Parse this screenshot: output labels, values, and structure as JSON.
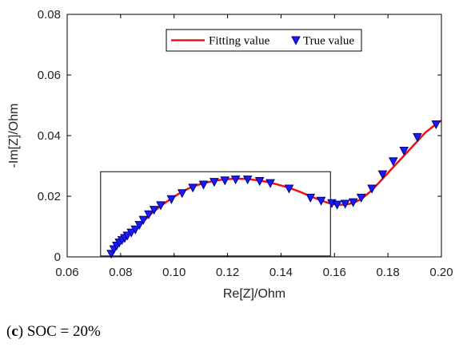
{
  "caption": {
    "open": "(",
    "letter": "c",
    "rest": ") SOC = 20%"
  },
  "chart_data": {
    "type": "line",
    "title": "",
    "xlabel": "Re[Z]/Ohm",
    "ylabel": "-Im[Z]/Ohm",
    "xlim": [
      0.06,
      0.2
    ],
    "ylim": [
      0,
      0.08
    ],
    "xticks": [
      "0.06",
      "0.08",
      "0.10",
      "0.12",
      "0.14",
      "0.16",
      "0.18",
      "0.20"
    ],
    "yticks": [
      "0",
      "0.02",
      "0.04",
      "0.06",
      "0.08"
    ],
    "grid": false,
    "legend_position": "top-right",
    "colors": {
      "fit": "#ee1111",
      "true": "#1a1aff",
      "marker_edge": "#000080"
    },
    "series": [
      {
        "name": "Fitting value",
        "style": "line",
        "x": [
          0.0765,
          0.0775,
          0.0785,
          0.0795,
          0.0805,
          0.0815,
          0.0825,
          0.084,
          0.086,
          0.088,
          0.09,
          0.092,
          0.095,
          0.099,
          0.103,
          0.107,
          0.111,
          0.115,
          0.119,
          0.123,
          0.127,
          0.131,
          0.135,
          0.139,
          0.143,
          0.147,
          0.151,
          0.155,
          0.158,
          0.161,
          0.164,
          0.167,
          0.17,
          0.174,
          0.178,
          0.182,
          0.186,
          0.19,
          0.194,
          0.198,
          0.2
        ],
        "y": [
          0.0005,
          0.002,
          0.0035,
          0.0047,
          0.0057,
          0.0065,
          0.0072,
          0.0082,
          0.0095,
          0.0113,
          0.013,
          0.0147,
          0.0168,
          0.0193,
          0.0215,
          0.0232,
          0.0243,
          0.0251,
          0.0256,
          0.0258,
          0.0257,
          0.0253,
          0.0247,
          0.0238,
          0.0228,
          0.0215,
          0.02,
          0.0186,
          0.0177,
          0.0172,
          0.0172,
          0.0178,
          0.019,
          0.022,
          0.0258,
          0.0296,
          0.0334,
          0.0372,
          0.041,
          0.0438,
          0.045
        ]
      },
      {
        "name": "True value",
        "style": "marker",
        "marker": "triangle-down",
        "x": [
          0.0765,
          0.0775,
          0.0785,
          0.0795,
          0.0805,
          0.0815,
          0.0825,
          0.084,
          0.0855,
          0.087,
          0.0885,
          0.0905,
          0.0925,
          0.095,
          0.099,
          0.103,
          0.107,
          0.111,
          0.115,
          0.119,
          0.123,
          0.1275,
          0.132,
          0.136,
          0.143,
          0.151,
          0.155,
          0.159,
          0.161,
          0.164,
          0.167,
          0.17,
          0.174,
          0.178,
          0.182,
          0.186,
          0.191,
          0.198
        ],
        "y": [
          0.001,
          0.0025,
          0.0037,
          0.0047,
          0.0055,
          0.0062,
          0.007,
          0.008,
          0.009,
          0.0105,
          0.0122,
          0.014,
          0.0155,
          0.017,
          0.019,
          0.021,
          0.0228,
          0.0238,
          0.0247,
          0.0252,
          0.0255,
          0.0255,
          0.025,
          0.0243,
          0.0225,
          0.0195,
          0.0185,
          0.0177,
          0.0172,
          0.0175,
          0.018,
          0.0195,
          0.0225,
          0.0272,
          0.0315,
          0.035,
          0.0395,
          0.0437
        ]
      }
    ],
    "annotations": [
      {
        "type": "rectangle",
        "x0": 0.0725,
        "x1": 0.1585,
        "y0": 0.0003,
        "y1": 0.0281
      }
    ]
  }
}
